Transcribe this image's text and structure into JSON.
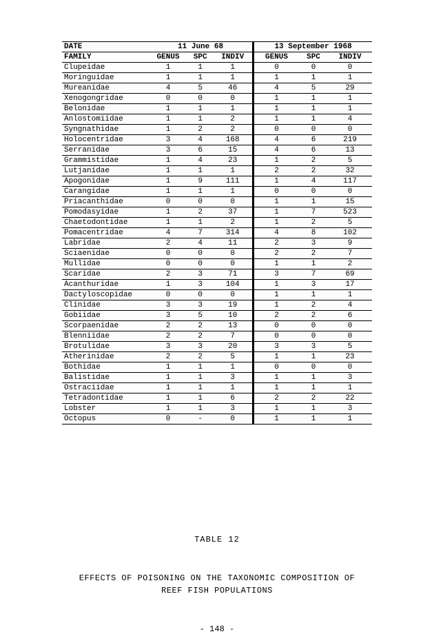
{
  "table": {
    "date_label": "DATE",
    "family_label": "FAMILY",
    "date1": "11 June 68",
    "date2": "13 September 1968",
    "col_headers": [
      "GENUS",
      "SPC",
      "INDIV",
      "GENUS",
      "SPC",
      "INDIV"
    ],
    "rows": [
      {
        "family": "Clupeidae",
        "g1": "1",
        "s1": "1",
        "i1": "1",
        "g2": "0",
        "s2": "0",
        "i2": "0"
      },
      {
        "family": "Moringuidae",
        "g1": "1",
        "s1": "1",
        "i1": "1",
        "g2": "1",
        "s2": "1",
        "i2": "1"
      },
      {
        "family": "Mureanidae",
        "g1": "4",
        "s1": "5",
        "i1": "46",
        "g2": "4",
        "s2": "5",
        "i2": "29"
      },
      {
        "family": "Xenogongridae",
        "g1": "0",
        "s1": "0",
        "i1": "0",
        "g2": "1",
        "s2": "1",
        "i2": "1"
      },
      {
        "family": "Belonidae",
        "g1": "1",
        "s1": "1",
        "i1": "1",
        "g2": "1",
        "s2": "1",
        "i2": "1"
      },
      {
        "family": "Anlostomiidae",
        "g1": "1",
        "s1": "1",
        "i1": "2",
        "g2": "1",
        "s2": "1",
        "i2": "4"
      },
      {
        "family": "Syngnathidae",
        "g1": "1",
        "s1": "2",
        "i1": "2",
        "g2": "0",
        "s2": "0",
        "i2": "0"
      },
      {
        "family": "Holocentridae",
        "g1": "3",
        "s1": "4",
        "i1": "168",
        "g2": "4",
        "s2": "6",
        "i2": "219"
      },
      {
        "family": "Serranidae",
        "g1": "3",
        "s1": "6",
        "i1": "15",
        "g2": "4",
        "s2": "6",
        "i2": "13"
      },
      {
        "family": "Grammistidae",
        "g1": "1",
        "s1": "4",
        "i1": "23",
        "g2": "1",
        "s2": "2",
        "i2": "5"
      },
      {
        "family": "Lutjanidae",
        "g1": "1",
        "s1": "1",
        "i1": "1",
        "g2": "2",
        "s2": "2",
        "i2": "32"
      },
      {
        "family": "Apogonidae",
        "g1": "1",
        "s1": "9",
        "i1": "111",
        "g2": "1",
        "s2": "4",
        "i2": "117"
      },
      {
        "family": "Carangidae",
        "g1": "1",
        "s1": "1",
        "i1": "1",
        "g2": "0",
        "s2": "0",
        "i2": "0"
      },
      {
        "family": "Priacanthidae",
        "g1": "0",
        "s1": "0",
        "i1": "0",
        "g2": "1",
        "s2": "1",
        "i2": "15"
      },
      {
        "family": "Pomodasyidae",
        "g1": "1",
        "s1": "2",
        "i1": "37",
        "g2": "1",
        "s2": "7",
        "i2": "523"
      },
      {
        "family": "Chaetodontidae",
        "g1": "1",
        "s1": "1",
        "i1": "2",
        "g2": "1",
        "s2": "2",
        "i2": "5"
      },
      {
        "family": "Pomacentridae",
        "g1": "4",
        "s1": "7",
        "i1": "314",
        "g2": "4",
        "s2": "8",
        "i2": "102"
      },
      {
        "family": "Labridae",
        "g1": "2",
        "s1": "4",
        "i1": "11",
        "g2": "2",
        "s2": "3",
        "i2": "9"
      },
      {
        "family": "Sciaenidae",
        "g1": "0",
        "s1": "0",
        "i1": "0",
        "g2": "2",
        "s2": "2",
        "i2": "7"
      },
      {
        "family": "Mullidae",
        "g1": "0",
        "s1": "0",
        "i1": "0",
        "g2": "1",
        "s2": "1",
        "i2": "2"
      },
      {
        "family": "Scaridae",
        "g1": "2",
        "s1": "3",
        "i1": "71",
        "g2": "3",
        "s2": "7",
        "i2": "69"
      },
      {
        "family": "Acanthuridae",
        "g1": "1",
        "s1": "3",
        "i1": "104",
        "g2": "1",
        "s2": "3",
        "i2": "17"
      },
      {
        "family": "Dactyloscopidae",
        "g1": "0",
        "s1": "0",
        "i1": "0",
        "g2": "1",
        "s2": "1",
        "i2": "1"
      },
      {
        "family": "Clinidae",
        "g1": "3",
        "s1": "3",
        "i1": "19",
        "g2": "1",
        "s2": "2",
        "i2": "4"
      },
      {
        "family": "Gobiidae",
        "g1": "3",
        "s1": "5",
        "i1": "10",
        "g2": "2",
        "s2": "2",
        "i2": "6"
      },
      {
        "family": "Scorpaenidae",
        "g1": "2",
        "s1": "2",
        "i1": "13",
        "g2": "0",
        "s2": "0",
        "i2": "0"
      },
      {
        "family": "Blenniidae",
        "g1": "2",
        "s1": "2",
        "i1": "7",
        "g2": "0",
        "s2": "0",
        "i2": "0"
      },
      {
        "family": "Brotulidae",
        "g1": "3",
        "s1": "3",
        "i1": "20",
        "g2": "3",
        "s2": "3",
        "i2": "5"
      },
      {
        "family": "Atherinidae",
        "g1": "2",
        "s1": "2",
        "i1": "5",
        "g2": "1",
        "s2": "1",
        "i2": "23"
      },
      {
        "family": "Bothidae",
        "g1": "1",
        "s1": "1",
        "i1": "1",
        "g2": "0",
        "s2": "0",
        "i2": "0"
      },
      {
        "family": "Balistidae",
        "g1": "1",
        "s1": "1",
        "i1": "3",
        "g2": "1",
        "s2": "1",
        "i2": "3"
      },
      {
        "family": "Ostraciidae",
        "g1": "1",
        "s1": "1",
        "i1": "1",
        "g2": "1",
        "s2": "1",
        "i2": "1"
      },
      {
        "family": "Tetradontidae",
        "g1": "1",
        "s1": "1",
        "i1": "6",
        "g2": "2",
        "s2": "2",
        "i2": "22"
      },
      {
        "family": "Lobster",
        "g1": "1",
        "s1": "1",
        "i1": "3",
        "g2": "1",
        "s2": "1",
        "i2": "3"
      },
      {
        "family": "Octopus",
        "g1": "0",
        "s1": "-",
        "i1": "0",
        "g2": "1",
        "s2": "1",
        "i2": "1"
      }
    ]
  },
  "caption": "TABLE 12",
  "title_line1": "EFFECTS OF POISONING ON THE TAXONOMIC COMPOSITION OF",
  "title_line2": "REEF FISH POPULATIONS",
  "page_number": "- 148 -"
}
